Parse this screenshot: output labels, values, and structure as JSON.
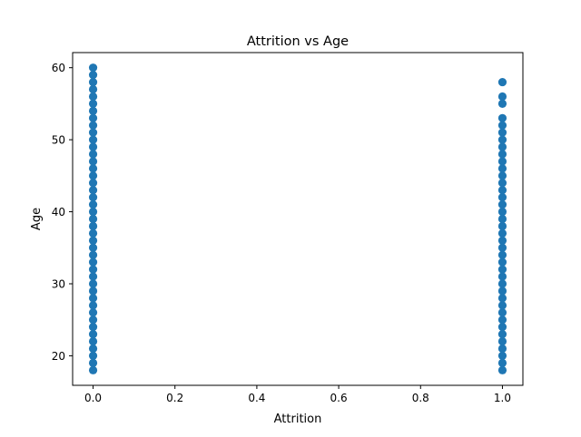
{
  "chart_data": {
    "type": "scatter",
    "title": "Attrition vs Age",
    "xlabel": "Attrition",
    "ylabel": "Age",
    "xlim": [
      -0.05,
      1.05
    ],
    "ylim": [
      15.9,
      62.1
    ],
    "xticks": [
      0.0,
      0.2,
      0.4,
      0.6,
      0.8,
      1.0
    ],
    "xtick_labels": [
      "0.0",
      "0.2",
      "0.4",
      "0.6",
      "0.8",
      "1.0"
    ],
    "yticks": [
      20,
      30,
      40,
      50,
      60
    ],
    "ytick_labels": [
      "20",
      "30",
      "40",
      "50",
      "60"
    ],
    "grid": false,
    "marker_color": "#1f77b4",
    "series": [
      {
        "points": [
          [
            0,
            18
          ],
          [
            0,
            19
          ],
          [
            0,
            20
          ],
          [
            0,
            21
          ],
          [
            0,
            22
          ],
          [
            0,
            23
          ],
          [
            0,
            24
          ],
          [
            0,
            25
          ],
          [
            0,
            26
          ],
          [
            0,
            27
          ],
          [
            0,
            28
          ],
          [
            0,
            29
          ],
          [
            0,
            30
          ],
          [
            0,
            31
          ],
          [
            0,
            32
          ],
          [
            0,
            33
          ],
          [
            0,
            34
          ],
          [
            0,
            35
          ],
          [
            0,
            36
          ],
          [
            0,
            37
          ],
          [
            0,
            38
          ],
          [
            0,
            39
          ],
          [
            0,
            40
          ],
          [
            0,
            41
          ],
          [
            0,
            42
          ],
          [
            0,
            43
          ],
          [
            0,
            44
          ],
          [
            0,
            45
          ],
          [
            0,
            46
          ],
          [
            0,
            47
          ],
          [
            0,
            48
          ],
          [
            0,
            49
          ],
          [
            0,
            50
          ],
          [
            0,
            51
          ],
          [
            0,
            52
          ],
          [
            0,
            53
          ],
          [
            0,
            54
          ],
          [
            0,
            55
          ],
          [
            0,
            56
          ],
          [
            0,
            57
          ],
          [
            0,
            58
          ],
          [
            0,
            59
          ],
          [
            0,
            60
          ],
          [
            1,
            18
          ],
          [
            1,
            19
          ],
          [
            1,
            20
          ],
          [
            1,
            21
          ],
          [
            1,
            22
          ],
          [
            1,
            23
          ],
          [
            1,
            24
          ],
          [
            1,
            25
          ],
          [
            1,
            26
          ],
          [
            1,
            27
          ],
          [
            1,
            28
          ],
          [
            1,
            29
          ],
          [
            1,
            30
          ],
          [
            1,
            31
          ],
          [
            1,
            32
          ],
          [
            1,
            33
          ],
          [
            1,
            34
          ],
          [
            1,
            35
          ],
          [
            1,
            36
          ],
          [
            1,
            37
          ],
          [
            1,
            38
          ],
          [
            1,
            39
          ],
          [
            1,
            40
          ],
          [
            1,
            41
          ],
          [
            1,
            42
          ],
          [
            1,
            43
          ],
          [
            1,
            44
          ],
          [
            1,
            45
          ],
          [
            1,
            46
          ],
          [
            1,
            47
          ],
          [
            1,
            48
          ],
          [
            1,
            49
          ],
          [
            1,
            50
          ],
          [
            1,
            51
          ],
          [
            1,
            52
          ],
          [
            1,
            53
          ],
          [
            1,
            55
          ],
          [
            1,
            56
          ],
          [
            1,
            58
          ]
        ]
      }
    ]
  }
}
